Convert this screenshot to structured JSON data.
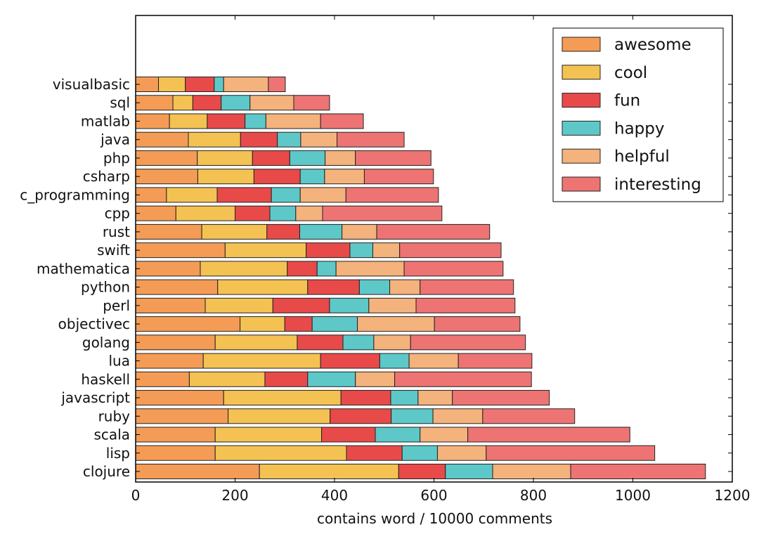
{
  "chart_data": {
    "type": "bar",
    "orientation": "horizontal",
    "stacked": true,
    "title": "",
    "xlabel": "contains word / 10000 comments",
    "ylabel": "",
    "xlim": [
      0,
      1200
    ],
    "x_ticks": [
      0,
      200,
      400,
      600,
      800,
      1000,
      1200
    ],
    "grid": false,
    "legend_position": "top-right",
    "categories": [
      "visualbasic",
      "sql",
      "matlab",
      "java",
      "php",
      "csharp",
      "c_programming",
      "cpp",
      "rust",
      "swift",
      "mathematica",
      "python",
      "perl",
      "objectivec",
      "golang",
      "lua",
      "haskell",
      "javascript",
      "ruby",
      "scala",
      "lisp",
      "clojure"
    ],
    "series": [
      {
        "name": "awesome",
        "color": "#f49c55",
        "values": [
          46,
          75,
          68,
          106,
          124,
          125,
          62,
          81,
          133,
          180,
          130,
          165,
          140,
          210,
          160,
          136,
          108,
          177,
          186,
          160,
          160,
          249
        ]
      },
      {
        "name": "cool",
        "color": "#f4c252",
        "values": [
          54,
          40,
          76,
          105,
          111,
          113,
          102,
          119,
          131,
          163,
          175,
          181,
          136,
          90,
          165,
          236,
          152,
          236,
          205,
          214,
          264,
          280
        ]
      },
      {
        "name": "fun",
        "color": "#e84a4a",
        "values": [
          58,
          57,
          76,
          74,
          75,
          93,
          109,
          70,
          66,
          88,
          60,
          104,
          114,
          55,
          92,
          119,
          86,
          100,
          123,
          108,
          112,
          94
        ]
      },
      {
        "name": "happy",
        "color": "#5ec8c8",
        "values": [
          19,
          58,
          42,
          47,
          71,
          49,
          58,
          52,
          85,
          46,
          38,
          61,
          79,
          91,
          62,
          59,
          96,
          55,
          84,
          90,
          71,
          95
        ]
      },
      {
        "name": "helpful",
        "color": "#f4b27c",
        "values": [
          90,
          88,
          110,
          73,
          61,
          80,
          92,
          54,
          70,
          54,
          137,
          61,
          95,
          155,
          74,
          99,
          79,
          69,
          100,
          96,
          98,
          157
        ]
      },
      {
        "name": "interesting",
        "color": "#ee7474",
        "values": [
          34,
          72,
          86,
          135,
          152,
          139,
          186,
          240,
          227,
          204,
          199,
          188,
          199,
          172,
          231,
          148,
          275,
          195,
          185,
          326,
          339,
          271
        ]
      }
    ]
  },
  "colors": {
    "frame": "#000000",
    "bar_edge": "#222222",
    "background": "#ffffff"
  }
}
